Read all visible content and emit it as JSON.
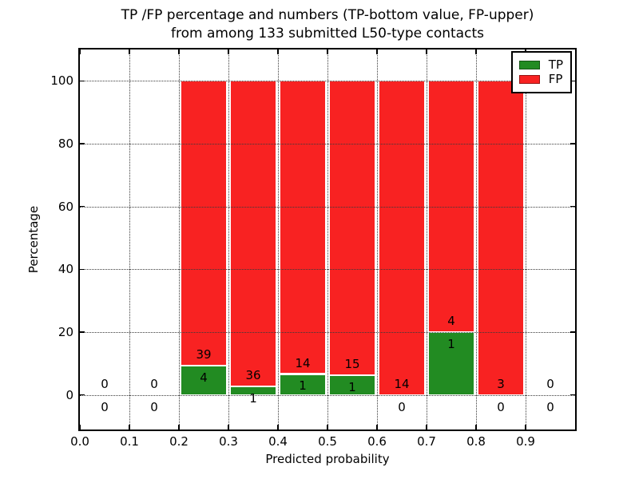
{
  "figure": {
    "title_line1": "TP /FP percentage and numbers (TP-bottom value, FP-upper)",
    "title_line2": "from among 133 submitted L50-type contacts",
    "xlabel": "Predicted probability",
    "ylabel": "Percentage"
  },
  "colors": {
    "tp": "#228b22",
    "fp": "#f82222",
    "grid": "#3a3a3a",
    "text": "#000000",
    "bar_edge": "#ffffff"
  },
  "legend": {
    "items": [
      {
        "label": "TP",
        "color": "#228b22"
      },
      {
        "label": "FP",
        "color": "#f82222"
      }
    ]
  },
  "chart_data": {
    "type": "bar",
    "stacked": true,
    "unit": "percent",
    "title": "TP /FP percentage and numbers (TP-bottom value, FP-upper) from among 133 submitted L50-type contacts",
    "xlabel": "Predicted probability",
    "ylabel": "Percentage",
    "total_contacts": 133,
    "grid": true,
    "legend_position": "upper right",
    "xlim": [
      0.0,
      1.0
    ],
    "ylim": [
      -11,
      110
    ],
    "bar_gap_frac": 0.004,
    "label_offsets": {
      "fp_above": 3.5,
      "tp_below": 3.8
    },
    "x_ticks": [
      {
        "v": 0.0,
        "label": "0.0"
      },
      {
        "v": 0.1,
        "label": "0.1"
      },
      {
        "v": 0.2,
        "label": "0.2"
      },
      {
        "v": 0.3,
        "label": "0.3"
      },
      {
        "v": 0.4,
        "label": "0.4"
      },
      {
        "v": 0.5,
        "label": "0.5"
      },
      {
        "v": 0.6,
        "label": "0.6"
      },
      {
        "v": 0.7,
        "label": "0.7"
      },
      {
        "v": 0.8,
        "label": "0.8"
      },
      {
        "v": 0.9,
        "label": "0.9"
      }
    ],
    "y_ticks": [
      {
        "v": 0,
        "label": "0"
      },
      {
        "v": 20,
        "label": "20"
      },
      {
        "v": 40,
        "label": "40"
      },
      {
        "v": 60,
        "label": "60"
      },
      {
        "v": 80,
        "label": "80"
      },
      {
        "v": 100,
        "label": "100"
      }
    ],
    "bins": [
      {
        "x0": 0.0,
        "x1": 0.1,
        "tp_count": 0,
        "fp_count": 0,
        "tp_pct": 0,
        "fp_pct": 0,
        "has_bar": false
      },
      {
        "x0": 0.1,
        "x1": 0.2,
        "tp_count": 0,
        "fp_count": 0,
        "tp_pct": 0,
        "fp_pct": 0,
        "has_bar": false
      },
      {
        "x0": 0.2,
        "x1": 0.3,
        "tp_count": 4,
        "fp_count": 39,
        "tp_pct": 9.302,
        "fp_pct": 90.698,
        "has_bar": true
      },
      {
        "x0": 0.3,
        "x1": 0.4,
        "tp_count": 1,
        "fp_count": 36,
        "tp_pct": 2.703,
        "fp_pct": 97.297,
        "has_bar": true
      },
      {
        "x0": 0.4,
        "x1": 0.5,
        "tp_count": 1,
        "fp_count": 14,
        "tp_pct": 6.667,
        "fp_pct": 93.333,
        "has_bar": true
      },
      {
        "x0": 0.5,
        "x1": 0.6,
        "tp_count": 1,
        "fp_count": 15,
        "tp_pct": 6.25,
        "fp_pct": 93.75,
        "has_bar": true
      },
      {
        "x0": 0.6,
        "x1": 0.7,
        "tp_count": 0,
        "fp_count": 14,
        "tp_pct": 0,
        "fp_pct": 100,
        "has_bar": true
      },
      {
        "x0": 0.7,
        "x1": 0.8,
        "tp_count": 1,
        "fp_count": 4,
        "tp_pct": 20.0,
        "fp_pct": 80.0,
        "has_bar": true
      },
      {
        "x0": 0.8,
        "x1": 0.9,
        "tp_count": 0,
        "fp_count": 3,
        "tp_pct": 0,
        "fp_pct": 100,
        "has_bar": true
      },
      {
        "x0": 0.9,
        "x1": 1.0,
        "tp_count": 0,
        "fp_count": 0,
        "tp_pct": 0,
        "fp_pct": 0,
        "has_bar": false
      }
    ]
  }
}
